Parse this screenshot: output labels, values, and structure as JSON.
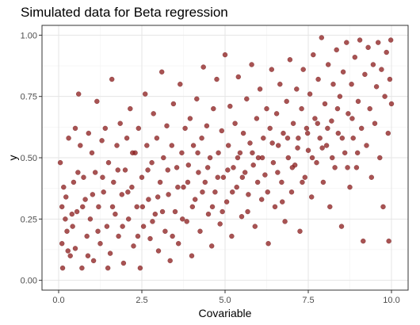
{
  "chart_data": {
    "type": "scatter",
    "title": "Simulated data for Beta regression",
    "xlabel": "Covariable",
    "ylabel": "y",
    "xlim": [
      -0.5,
      10.5
    ],
    "ylim": [
      -0.04,
      1.04
    ],
    "x_ticks": [
      {
        "value": 0,
        "label": "0.0"
      },
      {
        "value": 2.5,
        "label": "2.5"
      },
      {
        "value": 5,
        "label": "5.0"
      },
      {
        "value": 7.5,
        "label": "7.5"
      },
      {
        "value": 10,
        "label": "10.0"
      }
    ],
    "y_ticks": [
      {
        "value": 0,
        "label": "0.00"
      },
      {
        "value": 0.25,
        "label": "0.25"
      },
      {
        "value": 0.5,
        "label": "0.50"
      },
      {
        "value": 0.75,
        "label": "0.75"
      },
      {
        "value": 1,
        "label": "1.00"
      }
    ],
    "grid": true,
    "point_color": "#8b1a1a",
    "point_alpha": 0.75,
    "series": [
      {
        "points": [
          [
            0.05,
            0.48
          ],
          [
            0.1,
            0.3
          ],
          [
            0.1,
            0.15
          ],
          [
            0.12,
            0.05
          ],
          [
            0.2,
            0.25
          ],
          [
            0.22,
            0.34
          ],
          [
            0.25,
            0.2
          ],
          [
            0.3,
            0.58
          ],
          [
            0.35,
            0.1
          ],
          [
            0.4,
            0.27
          ],
          [
            0.45,
            0.4
          ],
          [
            0.5,
            0.62
          ],
          [
            0.5,
            0.13
          ],
          [
            0.55,
            0.28
          ],
          [
            0.6,
            0.76
          ],
          [
            0.65,
            0.55
          ],
          [
            0.7,
            0.05
          ],
          [
            0.75,
            0.42
          ],
          [
            0.8,
            0.33
          ],
          [
            0.85,
            0.18
          ],
          [
            0.9,
            0.6
          ],
          [
            0.95,
            0.25
          ],
          [
            1.0,
            0.52
          ],
          [
            1.05,
            0.08
          ],
          [
            1.1,
            0.44
          ],
          [
            1.15,
            0.73
          ],
          [
            1.2,
            0.3
          ],
          [
            1.25,
            0.15
          ],
          [
            1.3,
            0.57
          ],
          [
            1.35,
            0.36
          ],
          [
            1.4,
            0.62
          ],
          [
            1.45,
            0.22
          ],
          [
            1.5,
            0.48
          ],
          [
            1.55,
            0.11
          ],
          [
            1.6,
            0.82
          ],
          [
            1.65,
            0.4
          ],
          [
            1.7,
            0.27
          ],
          [
            1.75,
            0.55
          ],
          [
            1.8,
            0.18
          ],
          [
            1.85,
            0.64
          ],
          [
            1.9,
            0.35
          ],
          [
            1.95,
            0.07
          ],
          [
            2.0,
            0.45
          ],
          [
            2.05,
            0.58
          ],
          [
            2.1,
            0.25
          ],
          [
            2.15,
            0.7
          ],
          [
            2.2,
            0.38
          ],
          [
            2.25,
            0.14
          ],
          [
            2.3,
            0.52
          ],
          [
            2.35,
            0.3
          ],
          [
            2.4,
            0.62
          ],
          [
            2.45,
            0.05
          ],
          [
            2.5,
            0.42
          ],
          [
            2.55,
            0.22
          ],
          [
            2.6,
            0.76
          ],
          [
            2.65,
            0.55
          ],
          [
            2.7,
            0.33
          ],
          [
            2.75,
            0.17
          ],
          [
            2.8,
            0.48
          ],
          [
            2.85,
            0.68
          ],
          [
            2.9,
            0.27
          ],
          [
            2.95,
            0.58
          ],
          [
            3.0,
            0.12
          ],
          [
            3.05,
            0.4
          ],
          [
            3.1,
            0.85
          ],
          [
            3.15,
            0.5
          ],
          [
            3.2,
            0.2
          ],
          [
            3.25,
            0.63
          ],
          [
            3.3,
            0.35
          ],
          [
            3.35,
            0.08
          ],
          [
            3.4,
            0.55
          ],
          [
            3.45,
            0.72
          ],
          [
            3.5,
            0.28
          ],
          [
            3.55,
            0.46
          ],
          [
            3.6,
            0.15
          ],
          [
            3.65,
            0.8
          ],
          [
            3.7,
            0.52
          ],
          [
            3.75,
            0.38
          ],
          [
            3.8,
            0.62
          ],
          [
            3.85,
            0.24
          ],
          [
            3.9,
            0.47
          ],
          [
            3.95,
            0.66
          ],
          [
            4.0,
            0.1
          ],
          [
            4.05,
            0.55
          ],
          [
            4.1,
            0.33
          ],
          [
            4.15,
            0.74
          ],
          [
            4.2,
            0.44
          ],
          [
            4.25,
            0.2
          ],
          [
            4.3,
            0.58
          ],
          [
            4.35,
            0.87
          ],
          [
            4.4,
            0.4
          ],
          [
            4.45,
            0.63
          ],
          [
            4.5,
            0.27
          ],
          [
            4.55,
            0.5
          ],
          [
            4.6,
            0.14
          ],
          [
            4.65,
            0.7
          ],
          [
            4.7,
            0.36
          ],
          [
            4.75,
            0.82
          ],
          [
            4.8,
            0.52
          ],
          [
            4.85,
            0.23
          ],
          [
            4.9,
            0.61
          ],
          [
            4.95,
            0.42
          ],
          [
            5.0,
            0.92
          ],
          [
            5.05,
            0.32
          ],
          [
            5.1,
            0.55
          ],
          [
            5.15,
            0.71
          ],
          [
            5.2,
            0.18
          ],
          [
            5.25,
            0.46
          ],
          [
            5.3,
            0.64
          ],
          [
            5.35,
            0.38
          ],
          [
            5.4,
            0.83
          ],
          [
            5.45,
            0.52
          ],
          [
            5.5,
            0.26
          ],
          [
            5.55,
            0.6
          ],
          [
            5.6,
            0.44
          ],
          [
            5.65,
            0.74
          ],
          [
            5.7,
            0.35
          ],
          [
            5.75,
            0.56
          ],
          [
            5.8,
            0.88
          ],
          [
            5.85,
            0.47
          ],
          [
            5.9,
            0.22
          ],
          [
            5.95,
            0.66
          ],
          [
            6.0,
            0.5
          ],
          [
            6.05,
            0.78
          ],
          [
            6.1,
            0.33
          ],
          [
            6.15,
            0.58
          ],
          [
            6.2,
            0.43
          ],
          [
            6.25,
            0.7
          ],
          [
            6.3,
            0.15
          ],
          [
            6.35,
            0.62
          ],
          [
            6.4,
            0.86
          ],
          [
            6.45,
            0.48
          ],
          [
            6.5,
            0.3
          ],
          [
            6.55,
            0.68
          ],
          [
            6.6,
            0.55
          ],
          [
            6.65,
            0.8
          ],
          [
            6.7,
            0.4
          ],
          [
            6.75,
            0.6
          ],
          [
            6.8,
            0.24
          ],
          [
            6.85,
            0.73
          ],
          [
            6.9,
            0.5
          ],
          [
            6.95,
            0.9
          ],
          [
            7.0,
            0.36
          ],
          [
            7.05,
            0.64
          ],
          [
            7.1,
            0.47
          ],
          [
            7.15,
            0.78
          ],
          [
            7.2,
            0.58
          ],
          [
            7.25,
            0.2
          ],
          [
            7.3,
            0.7
          ],
          [
            7.35,
            0.86
          ],
          [
            7.4,
            0.42
          ],
          [
            7.45,
            0.62
          ],
          [
            7.5,
            0.53
          ],
          [
            7.55,
            0.76
          ],
          [
            7.6,
            0.34
          ],
          [
            7.65,
            0.92
          ],
          [
            7.7,
            0.66
          ],
          [
            7.75,
            0.48
          ],
          [
            7.8,
            0.82
          ],
          [
            7.85,
            0.58
          ],
          [
            7.9,
            0.99
          ],
          [
            7.95,
            0.4
          ],
          [
            8.0,
            0.72
          ],
          [
            8.05,
            0.55
          ],
          [
            8.1,
            0.88
          ],
          [
            8.15,
            0.3
          ],
          [
            8.2,
            0.65
          ],
          [
            8.25,
            0.8
          ],
          [
            8.3,
            0.46
          ],
          [
            8.35,
            0.94
          ],
          [
            8.4,
            0.6
          ],
          [
            8.45,
            0.75
          ],
          [
            8.5,
            0.22
          ],
          [
            8.55,
            0.85
          ],
          [
            8.6,
            0.52
          ],
          [
            8.65,
            0.97
          ],
          [
            8.7,
            0.68
          ],
          [
            8.75,
            0.38
          ],
          [
            8.8,
            0.8
          ],
          [
            8.85,
            0.58
          ],
          [
            8.9,
            0.91
          ],
          [
            8.95,
            0.46
          ],
          [
            9.0,
            0.73
          ],
          [
            9.05,
            0.98
          ],
          [
            9.1,
            0.62
          ],
          [
            9.15,
            0.16
          ],
          [
            9.2,
            0.84
          ],
          [
            9.25,
            0.55
          ],
          [
            9.3,
            0.95
          ],
          [
            9.35,
            0.7
          ],
          [
            9.4,
            0.42
          ],
          [
            9.45,
            0.88
          ],
          [
            9.5,
            0.64
          ],
          [
            9.55,
            0.79
          ],
          [
            9.6,
            0.97
          ],
          [
            9.65,
            0.5
          ],
          [
            9.7,
            0.86
          ],
          [
            9.75,
            0.3
          ],
          [
            9.8,
            0.75
          ],
          [
            9.85,
            0.93
          ],
          [
            9.9,
            0.6
          ],
          [
            9.92,
            0.16
          ],
          [
            9.95,
            0.82
          ],
          [
            9.98,
            0.98
          ],
          [
            10.0,
            0.72
          ],
          [
            0.15,
            0.38
          ],
          [
            0.28,
            0.12
          ],
          [
            0.42,
            0.22
          ],
          [
            0.58,
            0.44
          ],
          [
            0.72,
            0.3
          ],
          [
            0.88,
            0.1
          ],
          [
            1.02,
            0.35
          ],
          [
            1.18,
            0.2
          ],
          [
            1.32,
            0.42
          ],
          [
            1.48,
            0.05
          ],
          [
            1.62,
            0.3
          ],
          [
            1.78,
            0.45
          ],
          [
            1.92,
            0.22
          ],
          [
            2.08,
            0.36
          ],
          [
            2.22,
            0.52
          ],
          [
            2.38,
            0.18
          ],
          [
            2.52,
            0.3
          ],
          [
            2.68,
            0.45
          ],
          [
            2.82,
            0.24
          ],
          [
            2.98,
            0.34
          ],
          [
            3.12,
            0.28
          ],
          [
            3.28,
            0.45
          ],
          [
            3.42,
            0.18
          ],
          [
            3.58,
            0.38
          ],
          [
            3.72,
            0.25
          ],
          [
            3.88,
            0.4
          ],
          [
            4.02,
            0.3
          ],
          [
            4.18,
            0.52
          ],
          [
            4.32,
            0.36
          ],
          [
            4.48,
            0.46
          ],
          [
            4.62,
            0.3
          ],
          [
            4.78,
            0.42
          ],
          [
            4.92,
            0.28
          ],
          [
            5.08,
            0.45
          ],
          [
            5.22,
            0.36
          ],
          [
            5.38,
            0.5
          ],
          [
            5.52,
            0.42
          ],
          [
            5.68,
            0.28
          ],
          [
            5.82,
            0.52
          ],
          [
            5.98,
            0.4
          ],
          [
            6.12,
            0.5
          ],
          [
            6.28,
            0.36
          ],
          [
            6.42,
            0.56
          ],
          [
            6.58,
            0.44
          ],
          [
            6.72,
            0.32
          ],
          [
            6.88,
            0.58
          ],
          [
            7.02,
            0.46
          ],
          [
            7.18,
            0.54
          ],
          [
            7.32,
            0.4
          ],
          [
            7.48,
            0.6
          ],
          [
            7.62,
            0.5
          ],
          [
            7.78,
            0.64
          ],
          [
            7.92,
            0.54
          ],
          [
            8.08,
            0.62
          ],
          [
            8.22,
            0.5
          ],
          [
            8.38,
            0.7
          ],
          [
            8.52,
            0.58
          ],
          [
            8.68,
            0.46
          ],
          [
            8.82,
            0.66
          ],
          [
            8.98,
            0.52
          ]
        ]
      }
    ]
  }
}
